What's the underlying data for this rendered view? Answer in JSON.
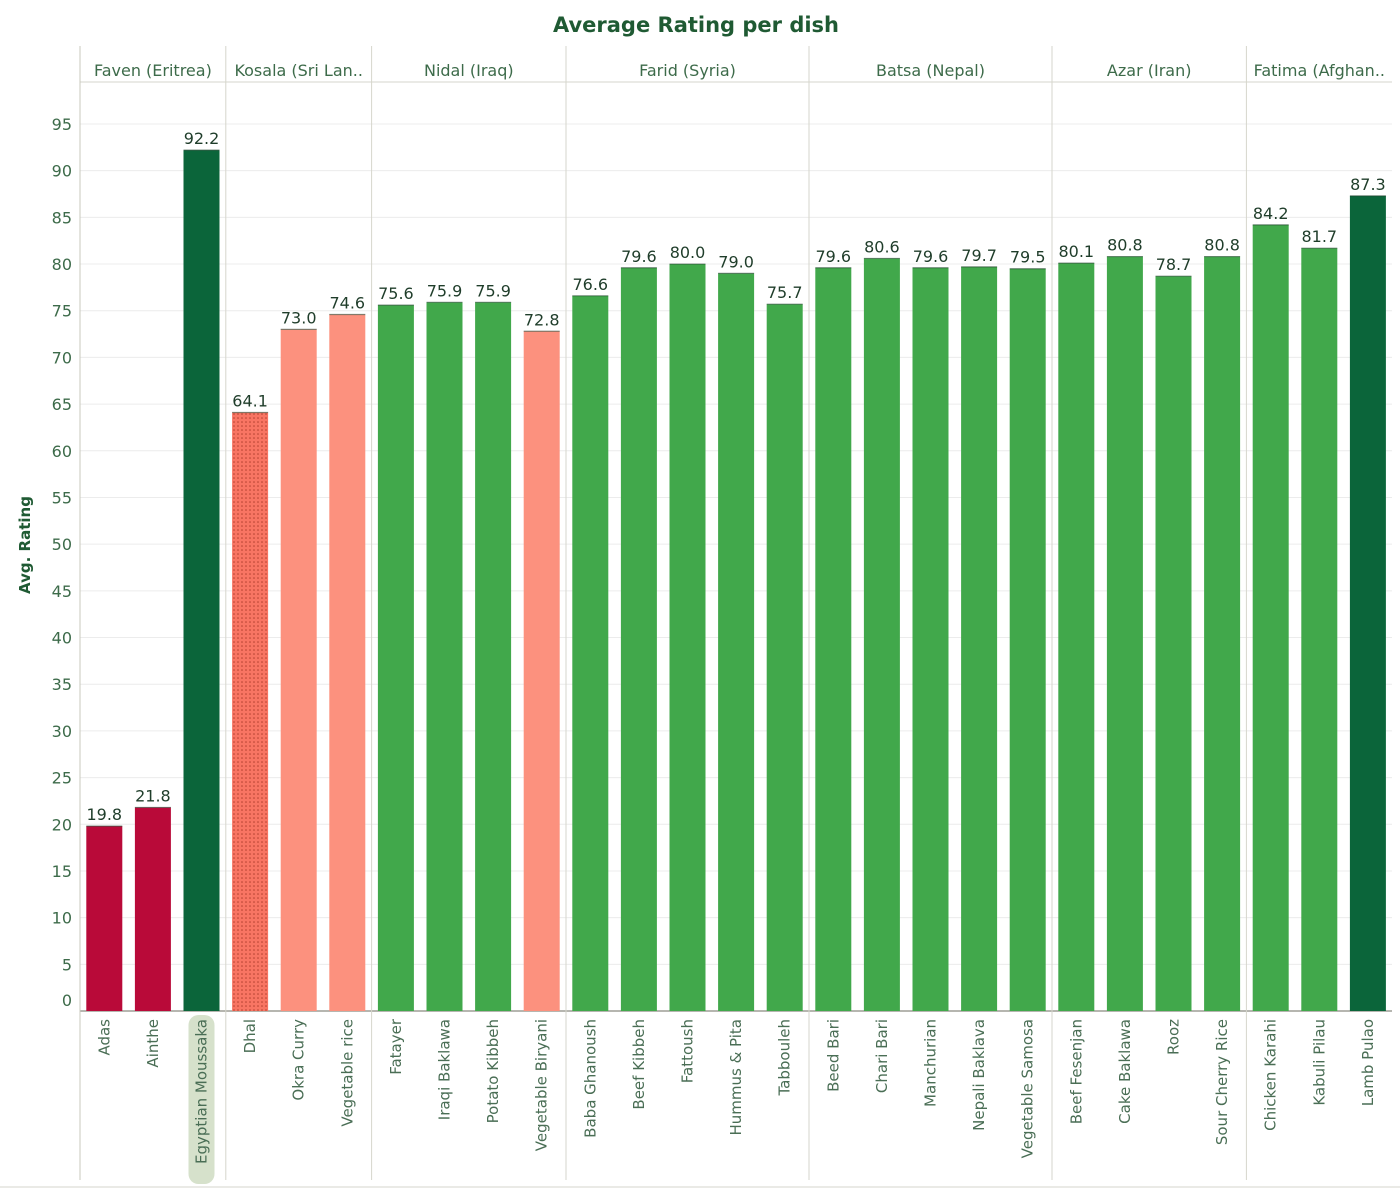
{
  "chart_data": {
    "type": "bar",
    "title": "Average Rating per dish",
    "ylabel": "Avg. Rating",
    "xlabel": "",
    "ylim": [
      0,
      100
    ],
    "yticks": [
      0,
      5,
      10,
      15,
      20,
      25,
      30,
      35,
      40,
      45,
      50,
      55,
      60,
      65,
      70,
      75,
      80,
      85,
      90,
      95
    ],
    "grid": "horizontal",
    "colors": {
      "low": "#b90a39",
      "mid": "#fc917e",
      "mid_highlighted": "#f87563",
      "good": "#41a84b",
      "top": "#0b653a"
    },
    "panels": [
      {
        "name": "Faven (Eritrea)",
        "dishes": [
          {
            "name": "Adas",
            "value": 19.8,
            "color": "low"
          },
          {
            "name": "Ainthe",
            "value": 21.8,
            "color": "low"
          },
          {
            "name": "Egyptian Moussaka",
            "value": 92.2,
            "color": "top",
            "highlighted": true
          }
        ]
      },
      {
        "name": "Kosala (Sri Lan..",
        "dishes": [
          {
            "name": "Dhal",
            "value": 64.1,
            "color": "mid_highlighted",
            "dotted": true
          },
          {
            "name": "Okra Curry",
            "value": 73.0,
            "color": "mid"
          },
          {
            "name": "Vegetable rice",
            "value": 74.6,
            "color": "mid"
          }
        ]
      },
      {
        "name": "Nidal (Iraq)",
        "dishes": [
          {
            "name": "Fatayer",
            "value": 75.6,
            "color": "good"
          },
          {
            "name": "Iraqi Baklawa",
            "value": 75.9,
            "color": "good"
          },
          {
            "name": "Potato Kibbeh",
            "value": 75.9,
            "color": "good"
          },
          {
            "name": "Vegetable Biryani",
            "value": 72.8,
            "color": "mid"
          }
        ]
      },
      {
        "name": "Farid (Syria)",
        "dishes": [
          {
            "name": "Baba Ghanoush",
            "value": 76.6,
            "color": "good"
          },
          {
            "name": "Beef Kibbeh",
            "value": 79.6,
            "color": "good"
          },
          {
            "name": "Fattoush",
            "value": 80.0,
            "color": "good"
          },
          {
            "name": "Hummus & Pita",
            "value": 79.0,
            "color": "good"
          },
          {
            "name": "Tabbouleh",
            "value": 75.7,
            "color": "good"
          }
        ]
      },
      {
        "name": "Batsa (Nepal)",
        "dishes": [
          {
            "name": "Beed Bari",
            "value": 79.6,
            "color": "good"
          },
          {
            "name": "Chari Bari",
            "value": 80.6,
            "color": "good"
          },
          {
            "name": "Manchurian",
            "value": 79.6,
            "color": "good"
          },
          {
            "name": "Nepali Baklava",
            "value": 79.7,
            "color": "good"
          },
          {
            "name": "Vegetable Samosa",
            "value": 79.5,
            "color": "good"
          }
        ]
      },
      {
        "name": "Azar (Iran)",
        "dishes": [
          {
            "name": "Beef Fesenjan",
            "value": 80.1,
            "color": "good"
          },
          {
            "name": "Cake Baklawa",
            "value": 80.8,
            "color": "good"
          },
          {
            "name": "Rooz",
            "value": 78.7,
            "color": "good"
          },
          {
            "name": "Sour Cherry Rice",
            "value": 80.8,
            "color": "good"
          }
        ]
      },
      {
        "name": "Fatima (Afghan..",
        "dishes": [
          {
            "name": "Chicken Karahi",
            "value": 84.2,
            "color": "good"
          },
          {
            "name": "Kabuli Pilau",
            "value": 81.7,
            "color": "good"
          },
          {
            "name": "Lamb Pulao",
            "value": 87.3,
            "color": "top"
          }
        ]
      }
    ]
  }
}
